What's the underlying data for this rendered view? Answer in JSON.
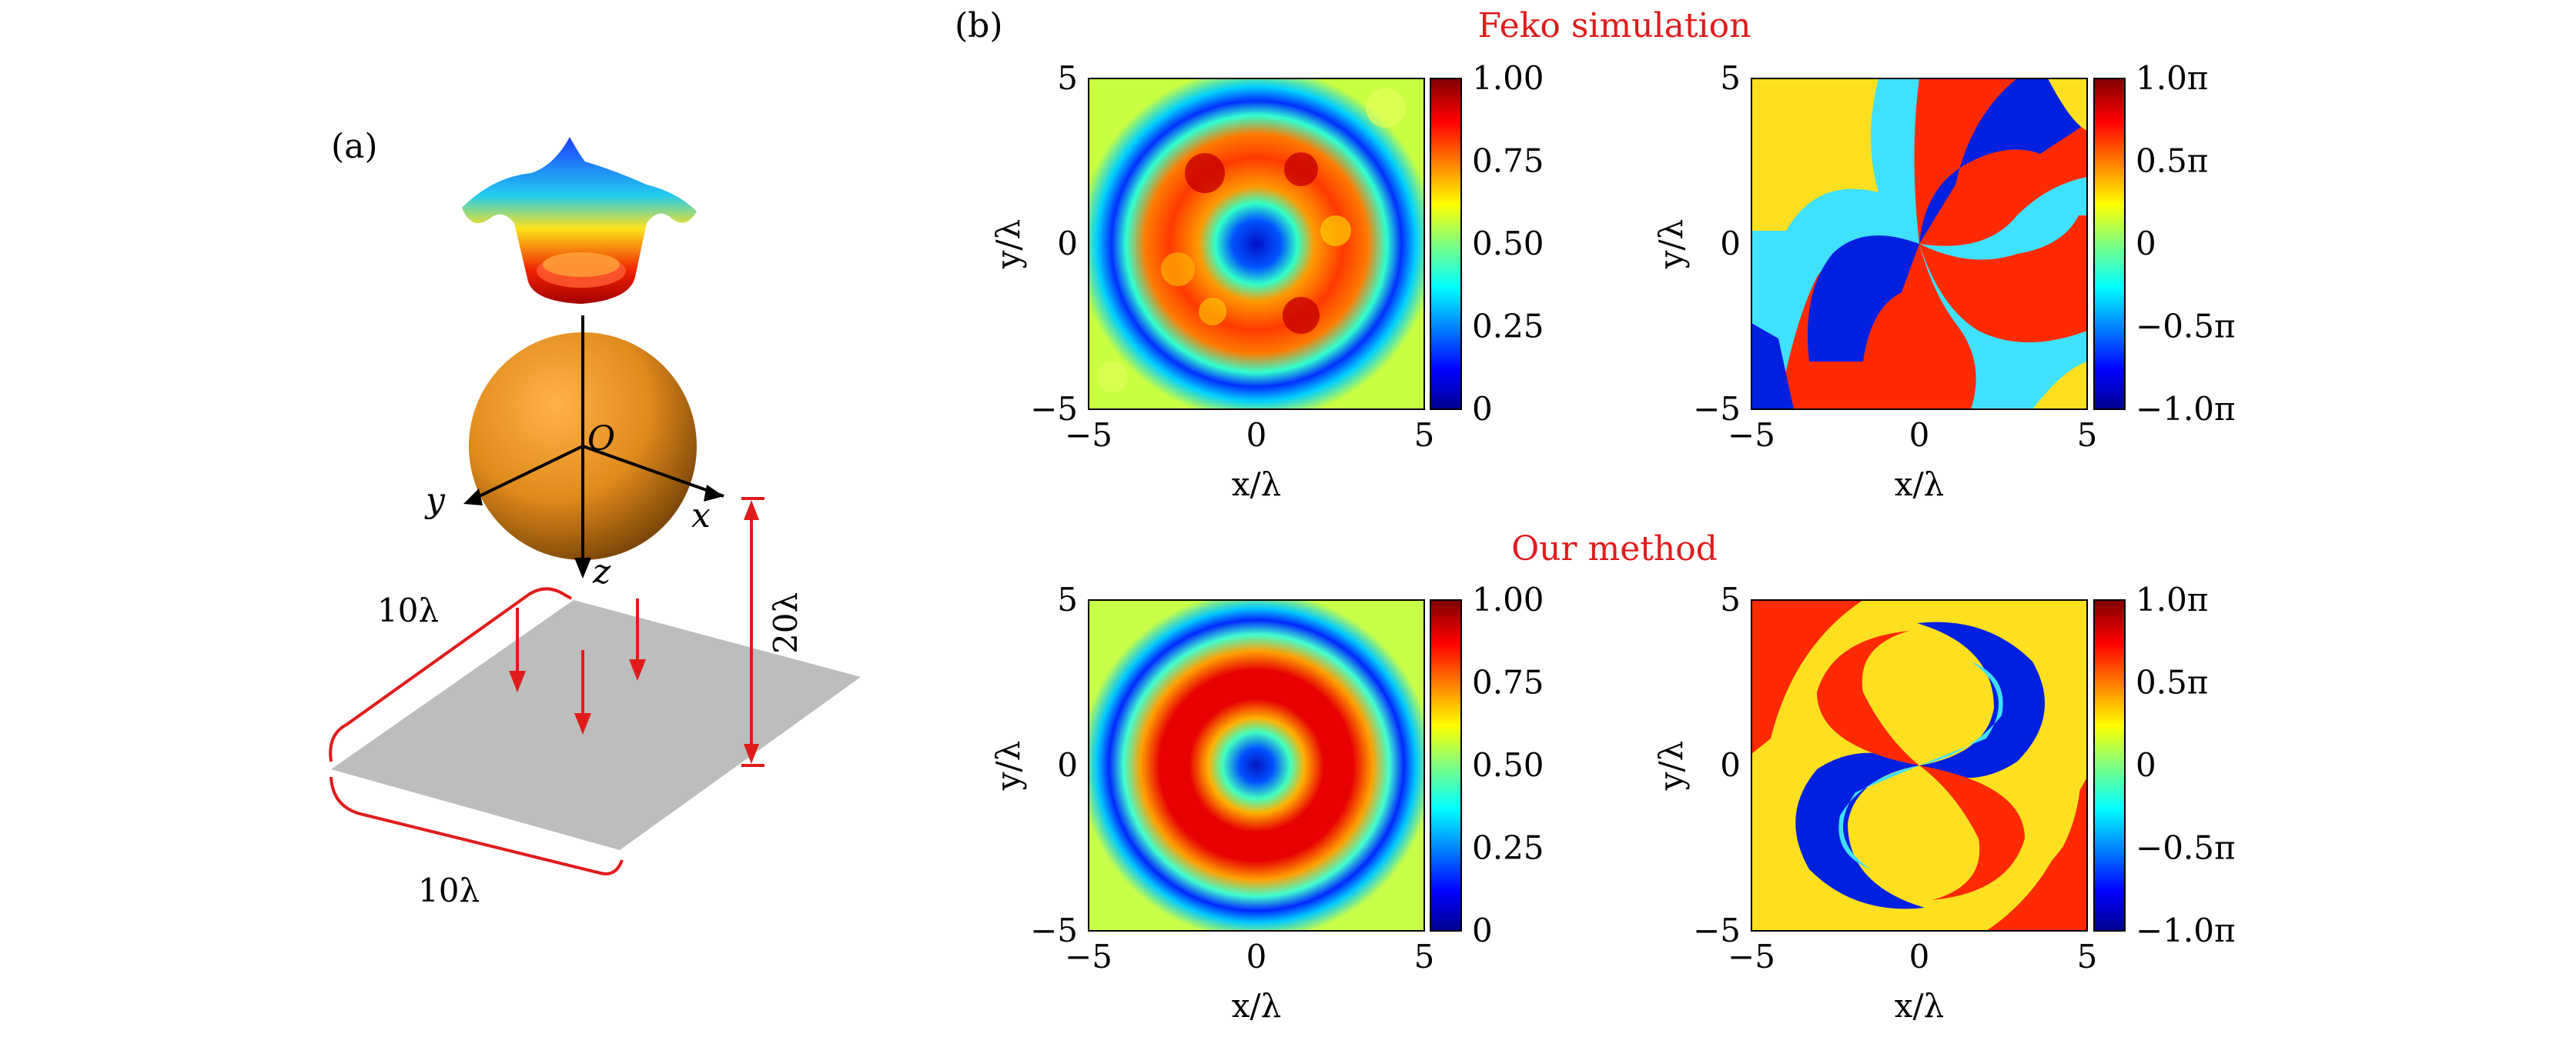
{
  "panel_a": {
    "label": "(a)",
    "origin_label": "O",
    "axis_x_label": "x",
    "axis_y_label": "y",
    "axis_z_label": "z",
    "dim_width_1": "10λ",
    "dim_width_2": "10λ",
    "dim_height": "20λ",
    "colors": {
      "sphere": "#e08a1c",
      "plane": "#bdbdbd",
      "annotation": "#e11b1b"
    }
  },
  "panel_b": {
    "label": "(b)",
    "row_titles": [
      "Feko simulation",
      "Our method"
    ],
    "xlabel": "x/λ",
    "ylabel": "y/λ",
    "xticks": [
      "−5",
      "0",
      "5"
    ],
    "yticks": [
      "5",
      "0",
      "−5"
    ],
    "colorbar_amplitude": [
      "1.00",
      "0.75",
      "0.50",
      "0.25",
      "0"
    ],
    "colorbar_phase": [
      "1.0π",
      "0.5π",
      "0",
      "−0.5π",
      "−1.0π"
    ]
  },
  "chart_data": [
    {
      "type": "heatmap",
      "row": "Feko simulation",
      "quantity": "amplitude",
      "xlim": [
        -5,
        5
      ],
      "ylim": [
        -5,
        5
      ],
      "clim": [
        0,
        1.0
      ],
      "colormap": "jet",
      "pattern": "ring (vortex beam, l=1), noisy"
    },
    {
      "type": "heatmap",
      "row": "Feko simulation",
      "quantity": "phase",
      "xlim": [
        -5,
        5
      ],
      "ylim": [
        -5,
        5
      ],
      "clim": [
        "-1.0π",
        "1.0π"
      ],
      "colormap": "jet",
      "pattern": "spiral phase, noisy"
    },
    {
      "type": "heatmap",
      "row": "Our method",
      "quantity": "amplitude",
      "xlim": [
        -5,
        5
      ],
      "ylim": [
        -5,
        5
      ],
      "clim": [
        0,
        1.0
      ],
      "colormap": "jet",
      "pattern": "concentric rings"
    },
    {
      "type": "heatmap",
      "row": "Our method",
      "quantity": "phase",
      "xlim": [
        -5,
        5
      ],
      "ylim": [
        -5,
        5
      ],
      "clim": [
        "-1.0π",
        "1.0π"
      ],
      "colormap": "jet",
      "pattern": "two-arm spiral"
    }
  ]
}
